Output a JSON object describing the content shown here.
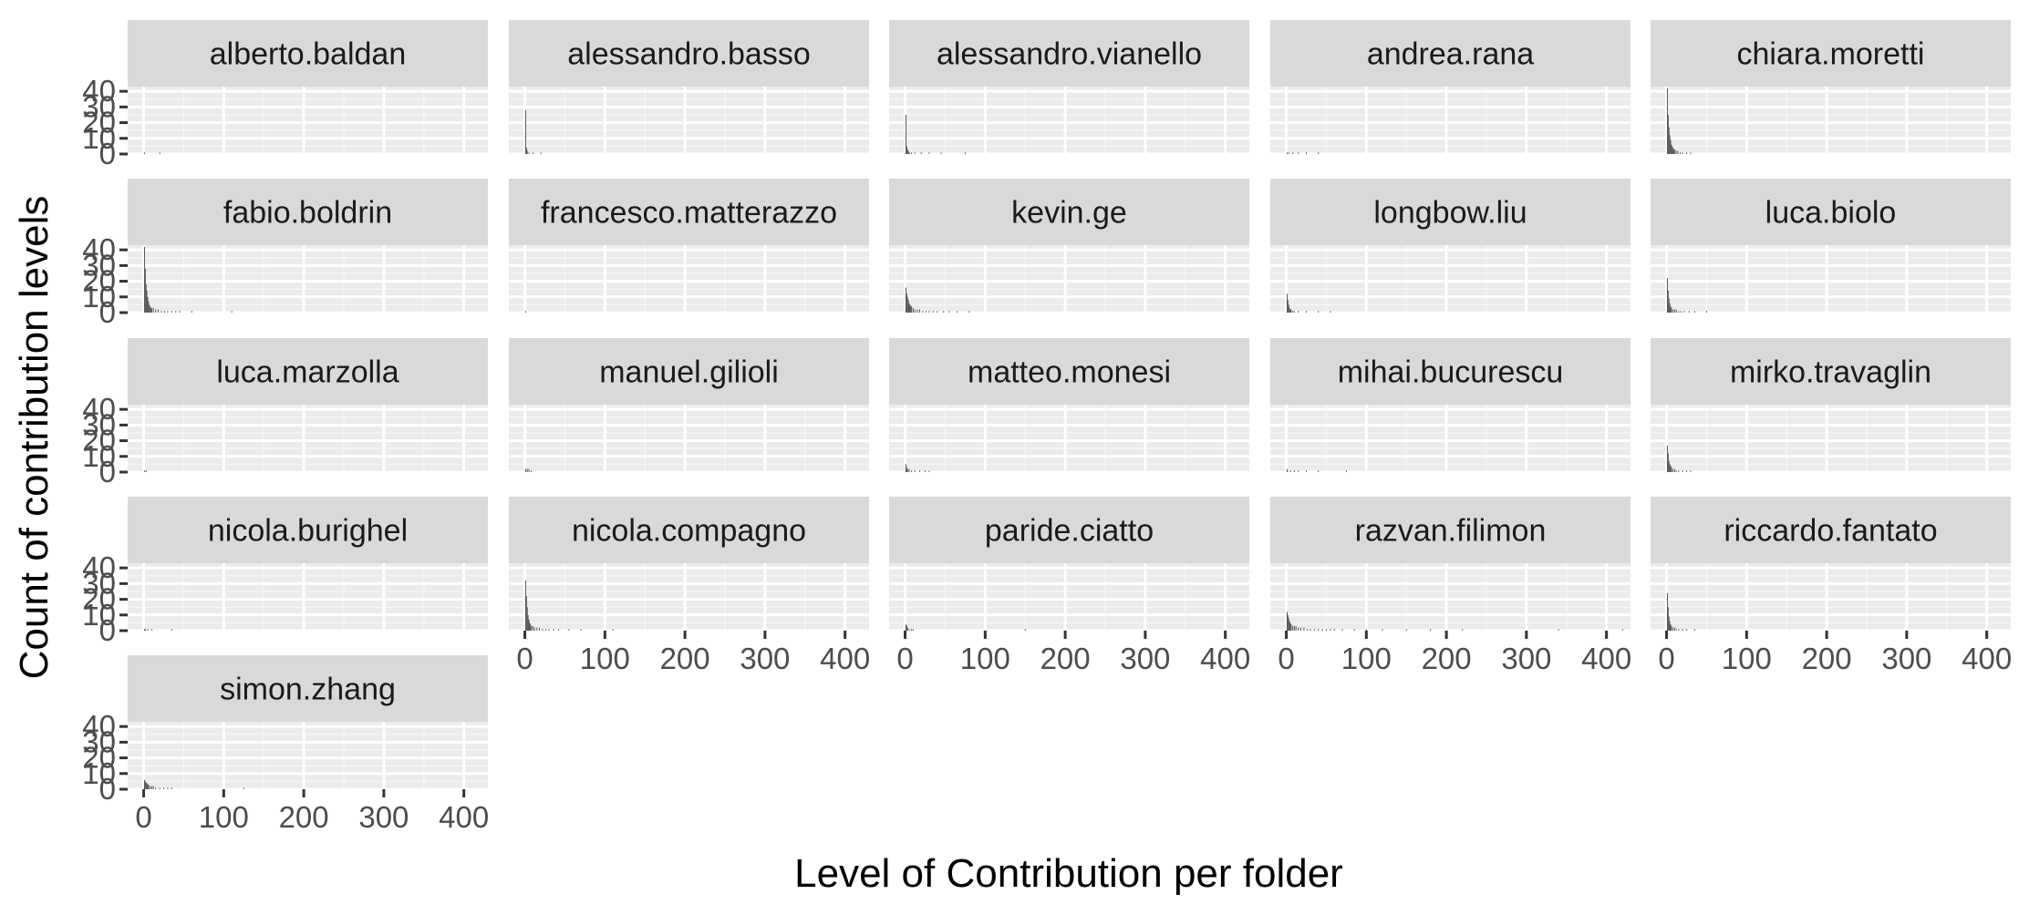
{
  "chart_data": {
    "type": "bar",
    "xlabel": "Level of Contribution per folder",
    "ylabel": "Count of contribution levels",
    "xlim": [
      -20,
      430
    ],
    "ylim": [
      0,
      43
    ],
    "x_ticks": [
      0,
      100,
      200,
      300,
      400
    ],
    "y_ticks": [
      0,
      10,
      20,
      30,
      40
    ],
    "grid": true,
    "legend": "none",
    "colors": {
      "panel_background": "#ebebeb",
      "grid_major": "#ffffff",
      "grid_minor": "#f5f5f5",
      "strip_background": "#d9d9d9",
      "bar": "#595959"
    },
    "panels": [
      {
        "name": "alberto.baldan",
        "bars": [
          [
            1,
            1
          ],
          [
            20,
            1
          ]
        ]
      },
      {
        "name": "alessandro.basso",
        "bars": [
          [
            1,
            28
          ],
          [
            2,
            4
          ],
          [
            3,
            2
          ],
          [
            5,
            1
          ],
          [
            10,
            1
          ],
          [
            20,
            1
          ]
        ]
      },
      {
        "name": "alessandro.vianello",
        "bars": [
          [
            1,
            25
          ],
          [
            2,
            5
          ],
          [
            3,
            3
          ],
          [
            4,
            2
          ],
          [
            5,
            1
          ],
          [
            8,
            1
          ],
          [
            12,
            1
          ],
          [
            20,
            1
          ],
          [
            30,
            1
          ],
          [
            45,
            1
          ],
          [
            75,
            1
          ]
        ]
      },
      {
        "name": "andrea.rana",
        "bars": [
          [
            1,
            1
          ],
          [
            3,
            1
          ],
          [
            8,
            1
          ],
          [
            15,
            1
          ],
          [
            25,
            1
          ],
          [
            40,
            1
          ]
        ]
      },
      {
        "name": "chiara.moretti",
        "bars": [
          [
            1,
            42
          ],
          [
            2,
            25
          ],
          [
            3,
            17
          ],
          [
            4,
            12
          ],
          [
            5,
            9
          ],
          [
            6,
            6
          ],
          [
            7,
            5
          ],
          [
            8,
            4
          ],
          [
            9,
            3
          ],
          [
            10,
            3
          ],
          [
            12,
            2
          ],
          [
            14,
            2
          ],
          [
            17,
            1
          ],
          [
            20,
            1
          ],
          [
            25,
            1
          ],
          [
            30,
            1
          ]
        ]
      },
      {
        "name": "fabio.boldrin",
        "bars": [
          [
            1,
            42
          ],
          [
            2,
            28
          ],
          [
            3,
            18
          ],
          [
            4,
            14
          ],
          [
            5,
            10
          ],
          [
            6,
            7
          ],
          [
            7,
            5
          ],
          [
            8,
            4
          ],
          [
            9,
            3
          ],
          [
            10,
            3
          ],
          [
            12,
            3
          ],
          [
            15,
            2
          ],
          [
            18,
            2
          ],
          [
            22,
            1
          ],
          [
            26,
            1
          ],
          [
            30,
            1
          ],
          [
            35,
            1
          ],
          [
            40,
            1
          ],
          [
            45,
            1
          ],
          [
            60,
            1
          ],
          [
            110,
            1
          ]
        ]
      },
      {
        "name": "francesco.matterazzo",
        "bars": [
          [
            1,
            1
          ]
        ]
      },
      {
        "name": "kevin.ge",
        "bars": [
          [
            1,
            16
          ],
          [
            2,
            12
          ],
          [
            3,
            10
          ],
          [
            4,
            8
          ],
          [
            5,
            6
          ],
          [
            6,
            5
          ],
          [
            7,
            4
          ],
          [
            8,
            4
          ],
          [
            10,
            3
          ],
          [
            12,
            2
          ],
          [
            15,
            2
          ],
          [
            18,
            2
          ],
          [
            22,
            1
          ],
          [
            26,
            1
          ],
          [
            30,
            1
          ],
          [
            35,
            1
          ],
          [
            40,
            1
          ],
          [
            48,
            1
          ],
          [
            55,
            1
          ],
          [
            65,
            1
          ],
          [
            80,
            1
          ]
        ]
      },
      {
        "name": "longbow.liu",
        "bars": [
          [
            1,
            12
          ],
          [
            2,
            8
          ],
          [
            3,
            5
          ],
          [
            4,
            3
          ],
          [
            5,
            2
          ],
          [
            6,
            2
          ],
          [
            8,
            1
          ],
          [
            10,
            1
          ],
          [
            15,
            1
          ],
          [
            25,
            1
          ],
          [
            40,
            1
          ],
          [
            55,
            1
          ]
        ]
      },
      {
        "name": "luca.biolo",
        "bars": [
          [
            1,
            22
          ],
          [
            2,
            14
          ],
          [
            3,
            9
          ],
          [
            4,
            6
          ],
          [
            5,
            4
          ],
          [
            6,
            3
          ],
          [
            8,
            2
          ],
          [
            10,
            2
          ],
          [
            12,
            2
          ],
          [
            15,
            1
          ],
          [
            18,
            1
          ],
          [
            22,
            1
          ],
          [
            28,
            1
          ],
          [
            35,
            1
          ],
          [
            50,
            1
          ]
        ]
      },
      {
        "name": "luca.marzolla",
        "bars": [
          [
            1,
            1
          ],
          [
            3,
            1
          ]
        ]
      },
      {
        "name": "manuel.gilioli",
        "bars": [
          [
            1,
            2
          ],
          [
            3,
            2
          ],
          [
            5,
            2
          ],
          [
            8,
            1
          ]
        ]
      },
      {
        "name": "matteo.monesi",
        "bars": [
          [
            1,
            5
          ],
          [
            2,
            3
          ],
          [
            3,
            2
          ],
          [
            5,
            2
          ],
          [
            8,
            1
          ],
          [
            12,
            1
          ],
          [
            18,
            1
          ],
          [
            25,
            1
          ],
          [
            30,
            1
          ]
        ]
      },
      {
        "name": "mihai.bucurescu",
        "bars": [
          [
            1,
            2
          ],
          [
            5,
            1
          ],
          [
            10,
            1
          ],
          [
            15,
            1
          ],
          [
            25,
            1
          ],
          [
            40,
            1
          ],
          [
            75,
            1
          ]
        ]
      },
      {
        "name": "mirko.travaglin",
        "bars": [
          [
            1,
            17
          ],
          [
            2,
            12
          ],
          [
            3,
            7
          ],
          [
            4,
            5
          ],
          [
            5,
            4
          ],
          [
            6,
            3
          ],
          [
            8,
            2
          ],
          [
            10,
            2
          ],
          [
            12,
            1
          ],
          [
            15,
            1
          ],
          [
            20,
            1
          ],
          [
            25,
            1
          ],
          [
            30,
            1
          ]
        ]
      },
      {
        "name": "nicola.burighel",
        "bars": [
          [
            1,
            1
          ],
          [
            2,
            1
          ],
          [
            5,
            1
          ],
          [
            10,
            1
          ],
          [
            35,
            1
          ]
        ]
      },
      {
        "name": "nicola.compagno",
        "bars": [
          [
            1,
            32
          ],
          [
            2,
            22
          ],
          [
            3,
            15
          ],
          [
            4,
            10
          ],
          [
            5,
            7
          ],
          [
            6,
            5
          ],
          [
            7,
            4
          ],
          [
            8,
            3
          ],
          [
            10,
            3
          ],
          [
            12,
            2
          ],
          [
            15,
            2
          ],
          [
            18,
            2
          ],
          [
            22,
            1
          ],
          [
            26,
            1
          ],
          [
            30,
            1
          ],
          [
            36,
            1
          ],
          [
            42,
            1
          ],
          [
            55,
            1
          ],
          [
            70,
            1
          ],
          [
            110,
            1
          ]
        ]
      },
      {
        "name": "paride.ciatto",
        "bars": [
          [
            1,
            4
          ],
          [
            2,
            3
          ],
          [
            3,
            2
          ],
          [
            5,
            1
          ],
          [
            8,
            1
          ],
          [
            10,
            1
          ],
          [
            150,
            1
          ]
        ]
      },
      {
        "name": "razvan.filimon",
        "bars": [
          [
            1,
            12
          ],
          [
            2,
            10
          ],
          [
            3,
            8
          ],
          [
            4,
            6
          ],
          [
            5,
            5
          ],
          [
            6,
            4
          ],
          [
            8,
            3
          ],
          [
            10,
            3
          ],
          [
            12,
            3
          ],
          [
            15,
            2
          ],
          [
            18,
            2
          ],
          [
            22,
            2
          ],
          [
            26,
            1
          ],
          [
            30,
            1
          ],
          [
            35,
            1
          ],
          [
            40,
            1
          ],
          [
            45,
            1
          ],
          [
            50,
            1
          ],
          [
            55,
            1
          ],
          [
            60,
            1
          ],
          [
            70,
            1
          ],
          [
            85,
            1
          ],
          [
            100,
            1
          ],
          [
            120,
            1
          ],
          [
            150,
            1
          ],
          [
            180,
            1
          ],
          [
            220,
            1
          ],
          [
            340,
            1
          ],
          [
            420,
            1
          ]
        ]
      },
      {
        "name": "riccardo.fantato",
        "bars": [
          [
            1,
            24
          ],
          [
            2,
            15
          ],
          [
            3,
            9
          ],
          [
            4,
            6
          ],
          [
            5,
            4
          ],
          [
            6,
            3
          ],
          [
            8,
            2
          ],
          [
            10,
            2
          ],
          [
            12,
            1
          ],
          [
            15,
            1
          ],
          [
            20,
            1
          ],
          [
            25,
            1
          ],
          [
            35,
            1
          ]
        ]
      },
      {
        "name": "simon.zhang",
        "bars": [
          [
            1,
            6
          ],
          [
            2,
            5
          ],
          [
            3,
            4
          ],
          [
            4,
            4
          ],
          [
            5,
            3
          ],
          [
            6,
            3
          ],
          [
            8,
            2
          ],
          [
            10,
            2
          ],
          [
            12,
            2
          ],
          [
            15,
            1
          ],
          [
            20,
            1
          ],
          [
            25,
            1
          ],
          [
            30,
            1
          ],
          [
            35,
            1
          ],
          [
            125,
            1
          ]
        ]
      }
    ]
  }
}
